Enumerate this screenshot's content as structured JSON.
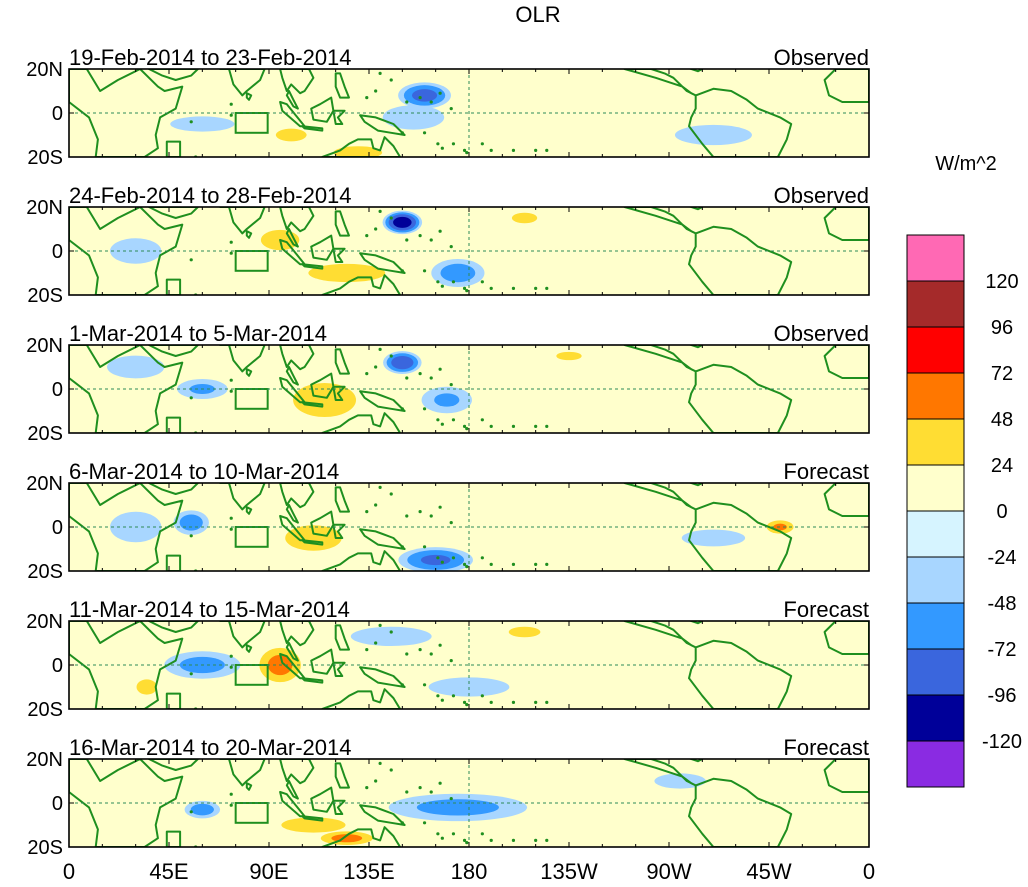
{
  "chart_data": {
    "type": "heatmap",
    "title": "OLR",
    "units": "W/m^2",
    "x_domain": "longitude, 0 to 360 (0E eastward through 180 to 0)",
    "x_ticks": [
      "0",
      "45E",
      "90E",
      "135E",
      "180",
      "135W",
      "90W",
      "45W",
      "0"
    ],
    "x_tick_values": [
      0,
      45,
      90,
      135,
      180,
      225,
      270,
      315,
      360
    ],
    "y_ticks": [
      "20N",
      "0",
      "20S"
    ],
    "y_tick_values": [
      20,
      0,
      -20
    ],
    "ylim": [
      -20,
      20
    ],
    "colorbar": {
      "labels": [
        "120",
        "96",
        "72",
        "48",
        "24",
        "0",
        "-24",
        "-48",
        "-72",
        "-96",
        "-120"
      ],
      "levels": [
        -120,
        -96,
        -72,
        -48,
        -24,
        0,
        24,
        48,
        72,
        96,
        120
      ],
      "colors_top_to_bottom": [
        "#ff69b4",
        "#a52a2a",
        "#ff0000",
        "#ff7700",
        "#ffdd33",
        "#ffffcc",
        "#d6f4ff",
        "#a8d6ff",
        "#3399ff",
        "#3a66dd",
        "#000099",
        "#8a2be2"
      ]
    },
    "panels": [
      {
        "period": "19-Feb-2014 to 23-Feb-2014",
        "status": "Observed",
        "anomalies": [
          {
            "lon": 160,
            "lat": 8,
            "rx": 14,
            "ry": 7,
            "value": -80
          },
          {
            "lon": 155,
            "lat": -2,
            "rx": 20,
            "ry": 8,
            "value": -40
          },
          {
            "lon": 130,
            "lat": -18,
            "rx": 15,
            "ry": 4,
            "value": 45
          },
          {
            "lon": 100,
            "lat": -10,
            "rx": 12,
            "ry": 5,
            "value": 30
          },
          {
            "lon": 290,
            "lat": -10,
            "rx": 30,
            "ry": 8,
            "value": -30
          },
          {
            "lon": 60,
            "lat": -5,
            "rx": 25,
            "ry": 6,
            "value": -30
          }
        ]
      },
      {
        "period": "24-Feb-2014 to 28-Feb-2014",
        "status": "Observed",
        "anomalies": [
          {
            "lon": 150,
            "lat": 13,
            "rx": 10,
            "ry": 6,
            "value": -110
          },
          {
            "lon": 175,
            "lat": -10,
            "rx": 15,
            "ry": 8,
            "value": -60
          },
          {
            "lon": 125,
            "lat": -10,
            "rx": 25,
            "ry": 6,
            "value": 40
          },
          {
            "lon": 95,
            "lat": 5,
            "rx": 15,
            "ry": 8,
            "value": 30
          },
          {
            "lon": 205,
            "lat": 15,
            "rx": 12,
            "ry": 5,
            "value": 25
          },
          {
            "lon": 30,
            "lat": 0,
            "rx": 20,
            "ry": 10,
            "value": -30
          }
        ]
      },
      {
        "period": "1-Mar-2014 to 5-Mar-2014",
        "status": "Observed",
        "anomalies": [
          {
            "lon": 150,
            "lat": 12,
            "rx": 10,
            "ry": 6,
            "value": -90
          },
          {
            "lon": 170,
            "lat": -5,
            "rx": 15,
            "ry": 8,
            "value": -50
          },
          {
            "lon": 115,
            "lat": -5,
            "rx": 22,
            "ry": 12,
            "value": 35
          },
          {
            "lon": 60,
            "lat": 0,
            "rx": 15,
            "ry": 6,
            "value": -50
          },
          {
            "lon": 225,
            "lat": 15,
            "rx": 12,
            "ry": 4,
            "value": 25
          },
          {
            "lon": 30,
            "lat": 10,
            "rx": 20,
            "ry": 8,
            "value": -35
          }
        ]
      },
      {
        "period": "6-Mar-2014 to 10-Mar-2014",
        "status": "Forecast",
        "anomalies": [
          {
            "lon": 165,
            "lat": -15,
            "rx": 20,
            "ry": 7,
            "value": -75
          },
          {
            "lon": 55,
            "lat": 2,
            "rx": 10,
            "ry": 7,
            "value": -60
          },
          {
            "lon": 110,
            "lat": -5,
            "rx": 22,
            "ry": 10,
            "value": 30
          },
          {
            "lon": 320,
            "lat": 0,
            "rx": 8,
            "ry": 4,
            "value": 50
          },
          {
            "lon": 30,
            "lat": 0,
            "rx": 20,
            "ry": 12,
            "value": -30
          },
          {
            "lon": 290,
            "lat": -5,
            "rx": 30,
            "ry": 8,
            "value": -25
          }
        ]
      },
      {
        "period": "11-Mar-2014 to 15-Mar-2014",
        "status": "Forecast",
        "anomalies": [
          {
            "lon": 95,
            "lat": 0,
            "rx": 12,
            "ry": 10,
            "value": 55
          },
          {
            "lon": 60,
            "lat": 0,
            "rx": 22,
            "ry": 8,
            "value": -55
          },
          {
            "lon": 145,
            "lat": 13,
            "rx": 25,
            "ry": 6,
            "value": -45
          },
          {
            "lon": 180,
            "lat": -10,
            "rx": 25,
            "ry": 6,
            "value": -45
          },
          {
            "lon": 205,
            "lat": 15,
            "rx": 15,
            "ry": 5,
            "value": 25
          },
          {
            "lon": 35,
            "lat": -10,
            "rx": 8,
            "ry": 6,
            "value": 30
          }
        ]
      },
      {
        "period": "16-Mar-2014 to 20-Mar-2014",
        "status": "Forecast",
        "anomalies": [
          {
            "lon": 175,
            "lat": -2,
            "rx": 40,
            "ry": 8,
            "value": -55
          },
          {
            "lon": 125,
            "lat": -16,
            "rx": 15,
            "ry": 4,
            "value": 55
          },
          {
            "lon": 60,
            "lat": -3,
            "rx": 10,
            "ry": 5,
            "value": -60
          },
          {
            "lon": 110,
            "lat": -10,
            "rx": 25,
            "ry": 6,
            "value": 30
          },
          {
            "lon": 275,
            "lat": 10,
            "rx": 20,
            "ry": 6,
            "value": -30
          },
          {
            "lon": 100,
            "lat": 5,
            "rx": 25,
            "ry": 6,
            "value": 10
          }
        ]
      }
    ]
  }
}
